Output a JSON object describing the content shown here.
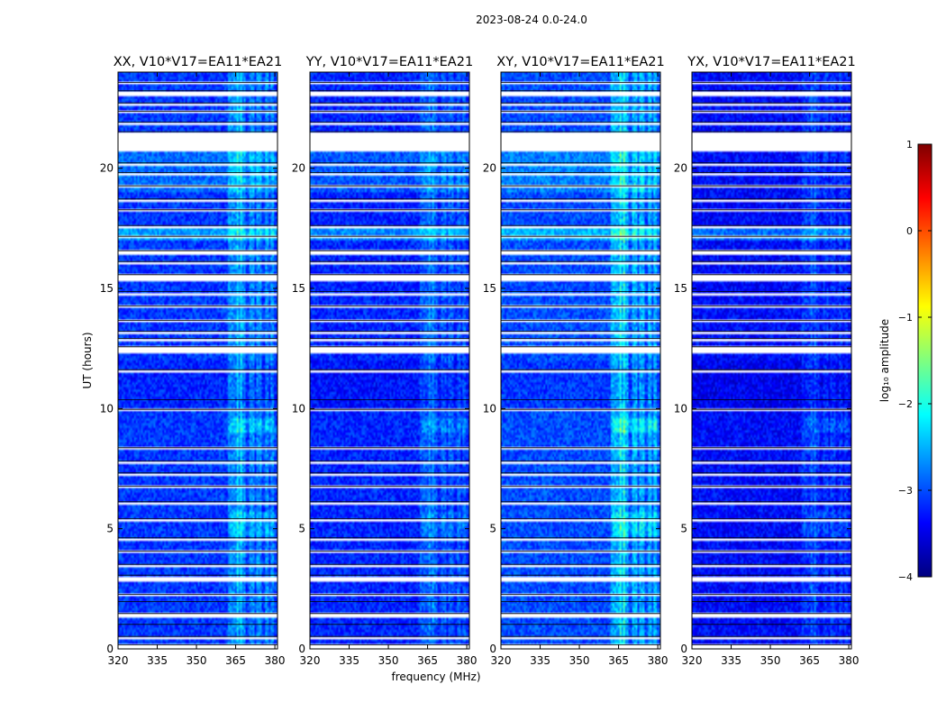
{
  "figure_title": "2023-08-24 0.0-24.0",
  "chart_data": {
    "type": "heatmap",
    "title": "2023-08-24 0.0-24.0",
    "xlabel": "frequency (MHz)",
    "ylabel": "UT (hours)",
    "xlim": [
      320,
      381
    ],
    "ylim": [
      0,
      24
    ],
    "xticks": [
      320,
      335,
      350,
      365,
      380
    ],
    "yticks": [
      0,
      5,
      10,
      15,
      20
    ],
    "colorbar": {
      "label": "log₁₀ amplitude",
      "range": [
        -4,
        1
      ],
      "ticks": [
        1,
        0,
        -1,
        -2,
        -3,
        -4
      ],
      "tick_labels": [
        "1",
        "0",
        "−1",
        "−2",
        "−3",
        "−4"
      ],
      "colormap": "jet",
      "colors": [
        "#00007f",
        "#0000ff",
        "#007fff",
        "#00ffff",
        "#7fff7f",
        "#ffff00",
        "#ff7f00",
        "#ff0000",
        "#7f0000"
      ]
    },
    "panels": [
      {
        "title": "XX, V10*V17=EA11*EA21",
        "base_level": -3.1,
        "rfi_boost": 0.45
      },
      {
        "title": "YY, V10*V17=EA11*EA21",
        "base_level": -3.2,
        "rfi_boost": 0.3
      },
      {
        "title": "XY, V10*V17=EA11*EA21",
        "base_level": -3.0,
        "rfi_boost": 0.55
      },
      {
        "title": "YX, V10*V17=EA11*EA21",
        "base_level": -3.35,
        "rfi_boost": 0.25
      }
    ],
    "rfi_channels_mhz": [
      363,
      365,
      366.5,
      368,
      371,
      374,
      377,
      379
    ],
    "flagged_hours": [
      [
        0.05,
        0.15
      ],
      [
        0.45,
        0.5
      ],
      [
        0.95,
        1.0
      ],
      [
        1.35,
        1.45
      ],
      [
        1.9,
        1.95
      ],
      [
        2.2,
        2.25
      ],
      [
        2.85,
        3.05
      ],
      [
        3.45,
        3.5
      ],
      [
        4.0,
        4.05
      ],
      [
        4.55,
        4.6
      ],
      [
        5.35,
        5.4
      ],
      [
        6.05,
        6.1
      ],
      [
        6.7,
        6.75
      ],
      [
        7.2,
        7.3
      ],
      [
        7.75,
        7.8
      ],
      [
        8.3,
        8.35
      ],
      [
        9.9,
        9.95
      ],
      [
        10.3,
        10.35
      ],
      [
        11.5,
        11.6
      ],
      [
        12.3,
        12.55
      ],
      [
        12.85,
        12.9
      ],
      [
        13.15,
        13.2
      ],
      [
        13.6,
        13.65
      ],
      [
        14.2,
        14.25
      ],
      [
        14.7,
        14.85
      ],
      [
        15.3,
        15.55
      ],
      [
        16.05,
        16.1
      ],
      [
        16.45,
        16.55
      ],
      [
        17.05,
        17.15
      ],
      [
        17.55,
        17.6
      ],
      [
        18.2,
        18.25
      ],
      [
        18.65,
        18.7
      ],
      [
        19.2,
        19.25
      ],
      [
        19.75,
        19.8
      ],
      [
        20.15,
        20.2
      ],
      [
        20.75,
        21.5
      ],
      [
        21.85,
        21.9
      ],
      [
        22.3,
        22.35
      ],
      [
        22.65,
        22.7
      ],
      [
        23.05,
        23.2
      ],
      [
        23.5,
        23.55
      ]
    ]
  }
}
